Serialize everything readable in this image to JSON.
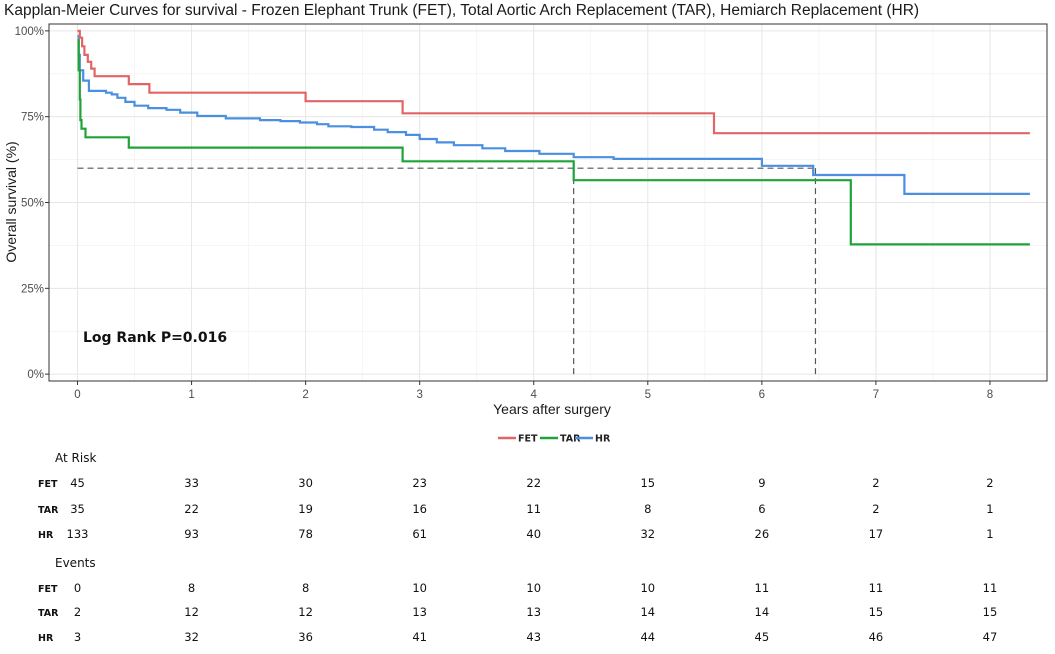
{
  "chart_data": {
    "type": "line",
    "title": "Kapplan-Meier Curves for survival - Frozen Elephant Trunk (FET), Total Aortic Arch Replacement (TAR), Hemiarch Replacement (HR)",
    "xlabel": "Years after surgery",
    "ylabel": "Overall survival (%)",
    "xlim": [
      -0.25,
      8.5
    ],
    "ylim": [
      -0.02,
      1.02
    ],
    "xticks": [
      0,
      1,
      2,
      3,
      4,
      5,
      6,
      7,
      8
    ],
    "xtick_labels": [
      "0",
      "1",
      "2",
      "3",
      "4",
      "5",
      "6",
      "7",
      "8"
    ],
    "yticks": [
      0,
      0.25,
      0.5,
      0.75,
      1.0
    ],
    "ytick_labels": [
      "0%",
      "25%",
      "50%",
      "75%",
      "100%"
    ],
    "grid": true,
    "annotation": "Log Rank P=0.016",
    "legend": {
      "position": "bottom",
      "entries": [
        "FET",
        "TAR",
        "HR"
      ]
    },
    "colors": {
      "FET": "#E06666",
      "TAR": "#1FA338",
      "HR": "#4A8FE0",
      "reference": "#555555"
    },
    "series": [
      {
        "name": "FET",
        "steps": [
          [
            0,
            1.0
          ],
          [
            0.02,
            0.98
          ],
          [
            0.04,
            0.955
          ],
          [
            0.06,
            0.93
          ],
          [
            0.09,
            0.91
          ],
          [
            0.12,
            0.89
          ],
          [
            0.15,
            0.868
          ],
          [
            0.45,
            0.845
          ],
          [
            0.63,
            0.82
          ],
          [
            2.0,
            0.795
          ],
          [
            2.85,
            0.76
          ],
          [
            5.58,
            0.702
          ],
          [
            8.35,
            0.702
          ]
        ]
      },
      {
        "name": "TAR",
        "steps": [
          [
            0,
            0.972
          ],
          [
            0.01,
            0.885
          ],
          [
            0.02,
            0.8
          ],
          [
            0.025,
            0.74
          ],
          [
            0.035,
            0.715
          ],
          [
            0.07,
            0.69
          ],
          [
            0.45,
            0.66
          ],
          [
            2.85,
            0.62
          ],
          [
            4.35,
            0.565
          ],
          [
            6.78,
            0.378
          ],
          [
            8.35,
            0.378
          ]
        ]
      },
      {
        "name": "HR",
        "steps": [
          [
            0,
            0.985
          ],
          [
            0.01,
            0.93
          ],
          [
            0.02,
            0.885
          ],
          [
            0.05,
            0.855
          ],
          [
            0.1,
            0.825
          ],
          [
            0.25,
            0.82
          ],
          [
            0.3,
            0.815
          ],
          [
            0.35,
            0.805
          ],
          [
            0.42,
            0.793
          ],
          [
            0.5,
            0.782
          ],
          [
            0.62,
            0.775
          ],
          [
            0.78,
            0.77
          ],
          [
            0.9,
            0.762
          ],
          [
            1.05,
            0.752
          ],
          [
            1.3,
            0.745
          ],
          [
            1.6,
            0.74
          ],
          [
            1.78,
            0.737
          ],
          [
            1.95,
            0.733
          ],
          [
            2.1,
            0.728
          ],
          [
            2.2,
            0.722
          ],
          [
            2.4,
            0.72
          ],
          [
            2.6,
            0.712
          ],
          [
            2.72,
            0.705
          ],
          [
            2.88,
            0.697
          ],
          [
            3.0,
            0.685
          ],
          [
            3.15,
            0.675
          ],
          [
            3.3,
            0.667
          ],
          [
            3.55,
            0.658
          ],
          [
            3.75,
            0.65
          ],
          [
            4.05,
            0.642
          ],
          [
            4.35,
            0.632
          ],
          [
            4.7,
            0.627
          ],
          [
            5.0,
            0.627
          ],
          [
            6.0,
            0.607
          ],
          [
            6.45,
            0.58
          ],
          [
            7.25,
            0.525
          ],
          [
            8.35,
            0.525
          ]
        ]
      }
    ],
    "reference_lines": [
      {
        "type": "horizontal",
        "y": 0.6,
        "x_from": 0,
        "x_to": 6.47
      },
      {
        "type": "vertical",
        "x": 4.35,
        "y_from": 0.0,
        "y_to": 0.6
      },
      {
        "type": "vertical",
        "x": 6.47,
        "y_from": 0.0,
        "y_to": 0.6
      }
    ]
  },
  "risk_table": {
    "at_risk_title": "At Risk",
    "events_title": "Events",
    "time_points": [
      0,
      1,
      2,
      3,
      4,
      5,
      6,
      7,
      8
    ],
    "at_risk": [
      {
        "label": "FET",
        "values": [
          "45",
          "33",
          "30",
          "23",
          "22",
          "15",
          "9",
          "2",
          "2"
        ]
      },
      {
        "label": "TAR",
        "values": [
          "35",
          "22",
          "19",
          "16",
          "11",
          "8",
          "6",
          "2",
          "1"
        ]
      },
      {
        "label": "HR",
        "values": [
          "133",
          "93",
          "78",
          "61",
          "40",
          "32",
          "26",
          "17",
          "1"
        ]
      }
    ],
    "events": [
      {
        "label": "FET",
        "values": [
          "0",
          "8",
          "8",
          "10",
          "10",
          "10",
          "11",
          "11",
          "11"
        ]
      },
      {
        "label": "TAR",
        "values": [
          "2",
          "12",
          "12",
          "13",
          "13",
          "14",
          "14",
          "15",
          "15"
        ]
      },
      {
        "label": "HR",
        "values": [
          "3",
          "32",
          "36",
          "41",
          "43",
          "44",
          "45",
          "46",
          "47"
        ]
      }
    ]
  }
}
